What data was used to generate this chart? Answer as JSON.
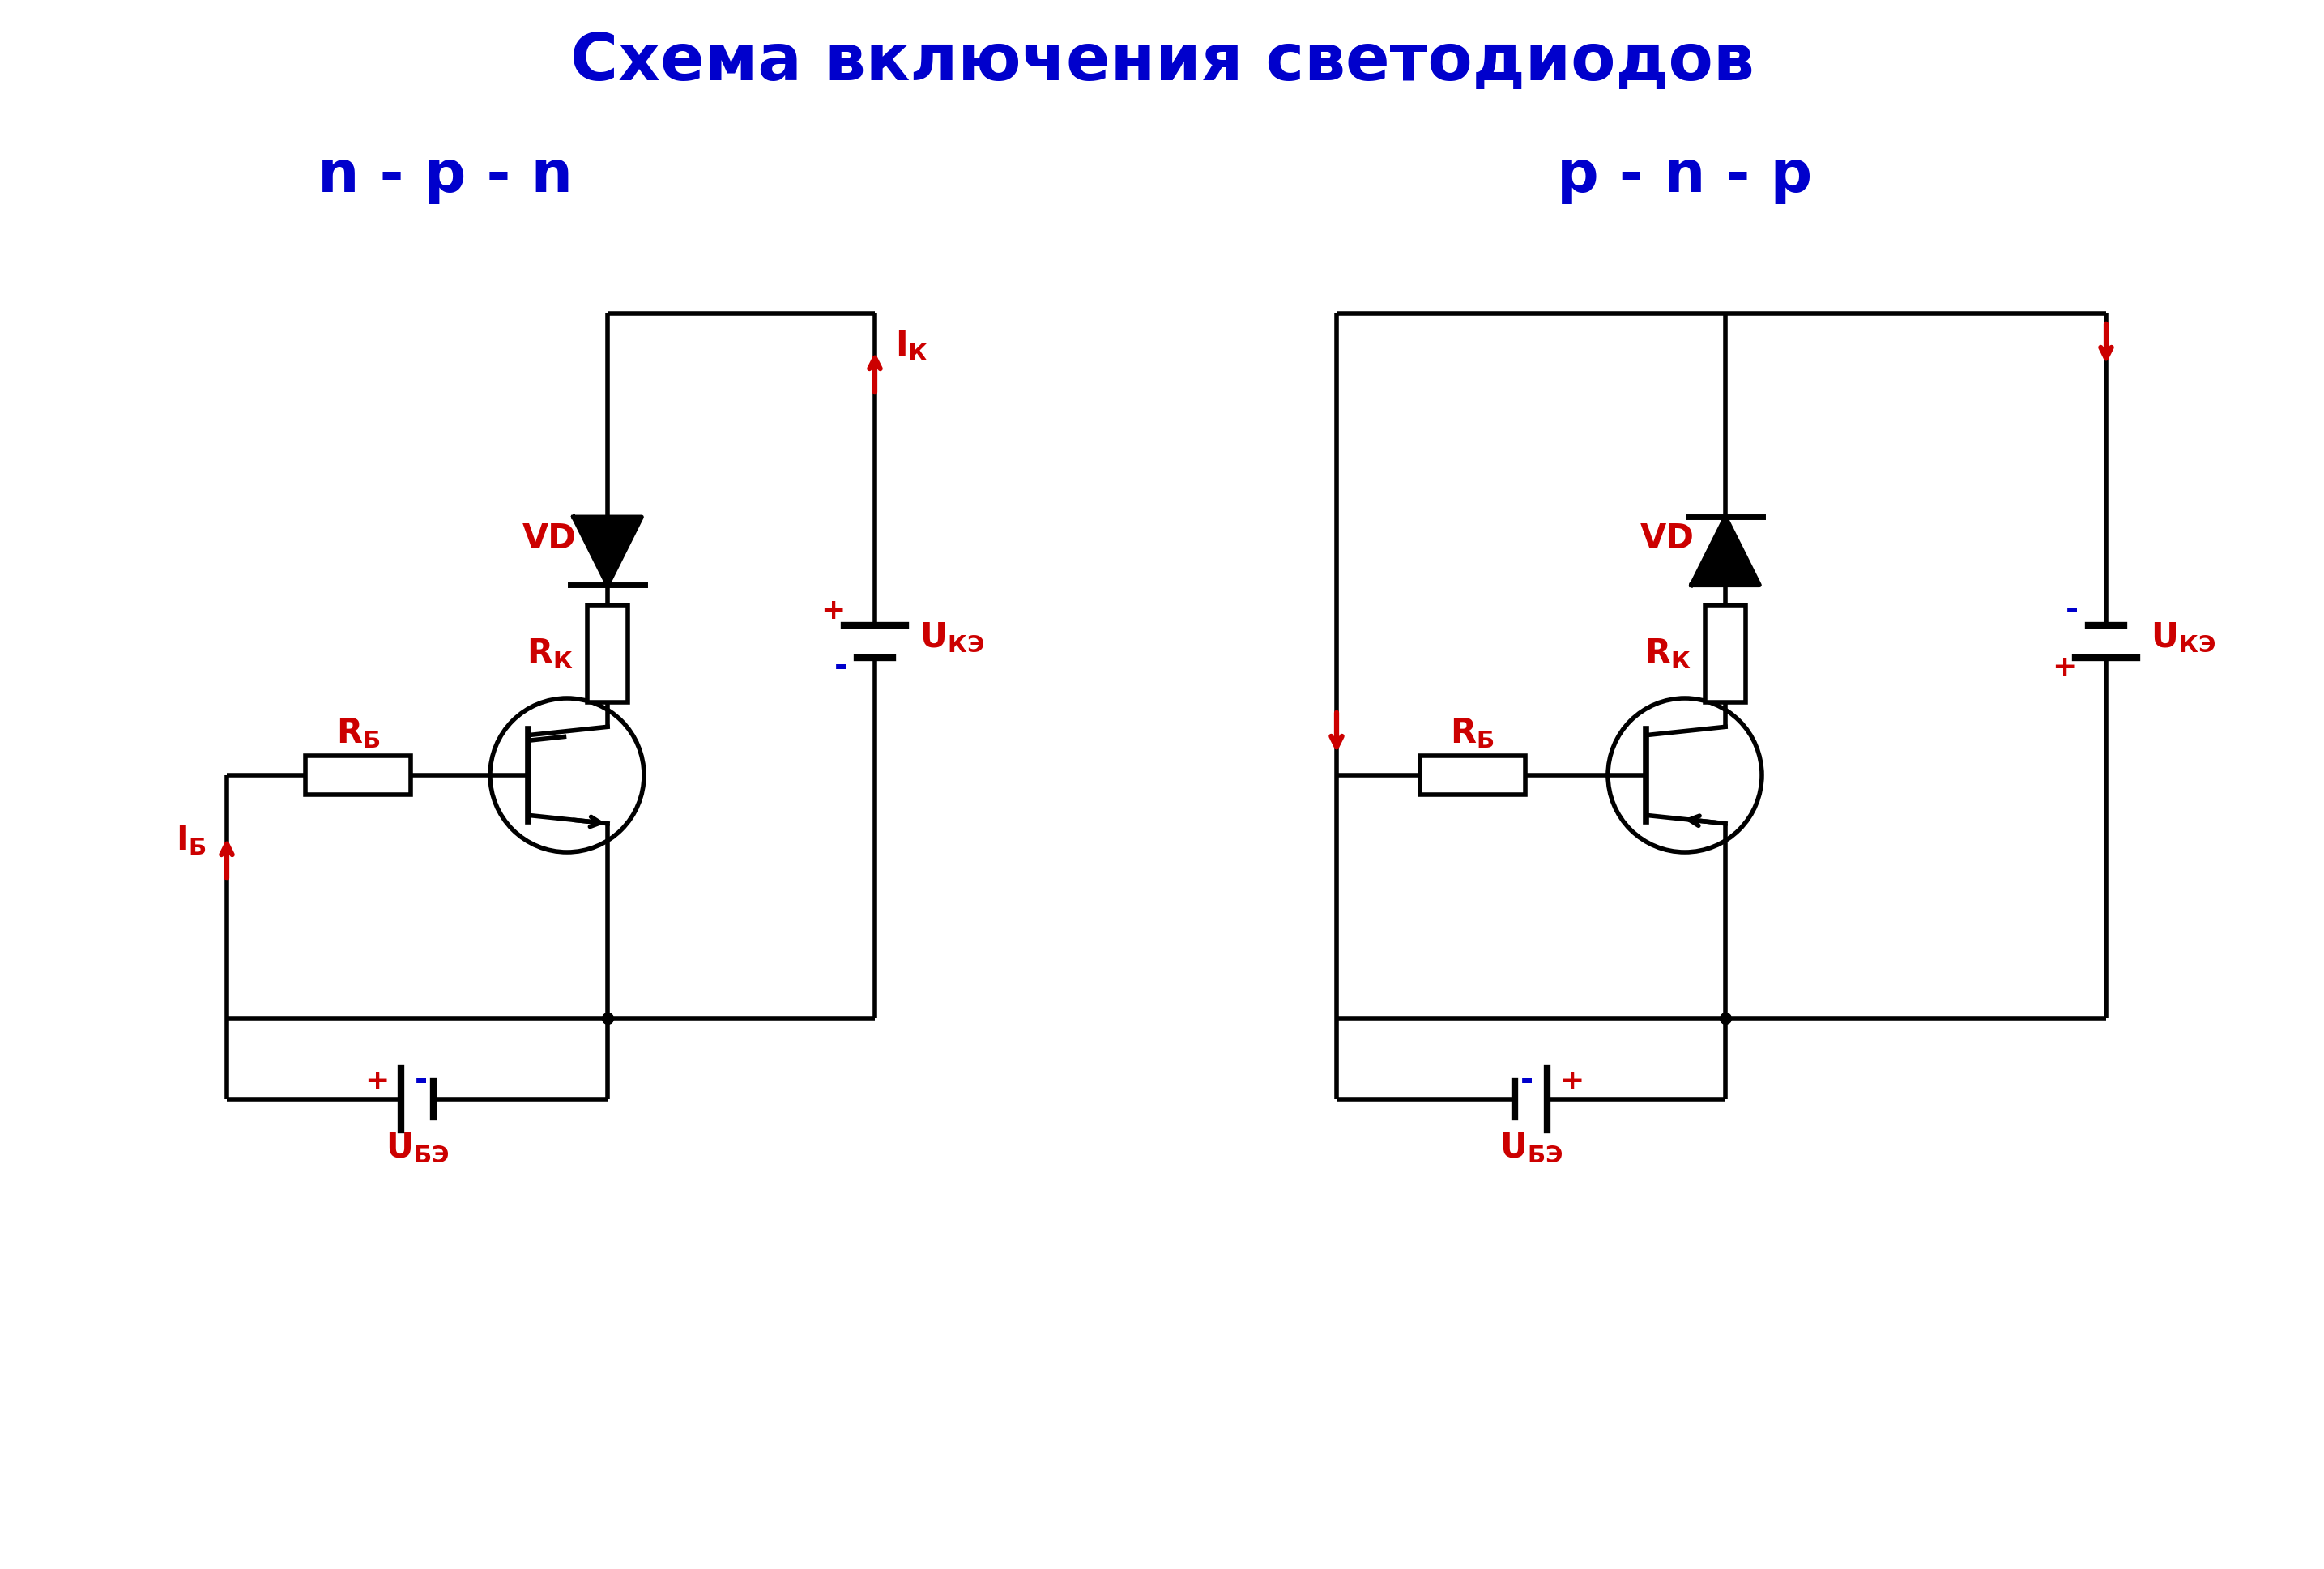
{
  "title": "Схема включения светодиодов",
  "title_color": "#0000CC",
  "title_fontsize": 58,
  "label_npn": "n - p - n",
  "label_pnp": "p - n - p",
  "label_color": "#0000CC",
  "label_fontsize": 52,
  "red_color": "#CC0000",
  "black_color": "#000000",
  "blue_color": "#0000CC",
  "bg_color": "#ffffff",
  "lw": 4.0
}
